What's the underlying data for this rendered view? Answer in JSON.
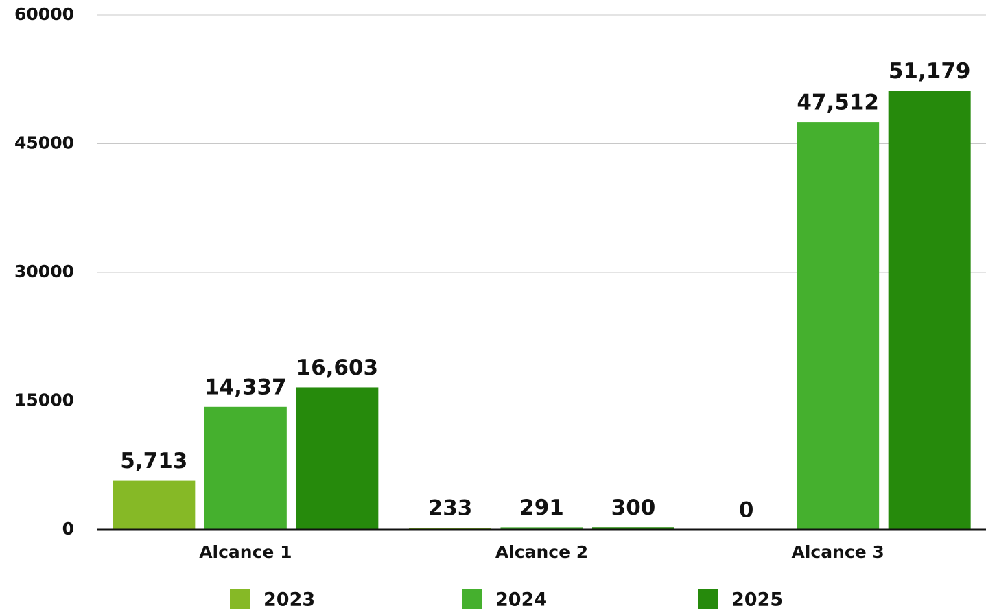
{
  "chart_data": {
    "type": "bar",
    "categories": [
      "Alcance 1",
      "Alcance 2",
      "Alcance 3"
    ],
    "series": [
      {
        "name": "2023",
        "color": "#86b926",
        "values": [
          5713,
          233,
          0
        ],
        "value_labels": [
          "5,713",
          "233",
          "0"
        ]
      },
      {
        "name": "2024",
        "color": "#45b02e",
        "values": [
          14337,
          291,
          47512
        ],
        "value_labels": [
          "14,337",
          "291",
          "47,512"
        ]
      },
      {
        "name": "2025",
        "color": "#268a0c",
        "values": [
          16603,
          300,
          51179
        ],
        "value_labels": [
          "16,603",
          "300",
          "51,179"
        ]
      }
    ],
    "ylim": [
      0,
      60000
    ],
    "yticks": [
      0,
      15000,
      30000,
      45000,
      60000
    ],
    "grid": true,
    "legend": "bottom"
  }
}
